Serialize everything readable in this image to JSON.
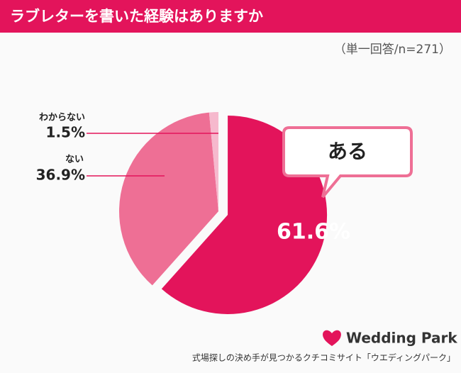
{
  "chart_data": {
    "type": "pie",
    "title": "ラブレターを書いた経験はありますか",
    "subtitle": "（単一回答/n=271）",
    "categories": [
      "ある",
      "ない",
      "わからない"
    ],
    "values": [
      61.6,
      36.9,
      1.5
    ],
    "value_labels": [
      "61.6%",
      "36.9%",
      "1.5%"
    ],
    "colors": [
      "#e3145b",
      "#ee6f95",
      "#f6b9cd"
    ]
  },
  "footer": {
    "brand": "Wedding Park",
    "tagline": "式場探しの決め手が見つかるクチコミサイト「ウエディングパーク」"
  }
}
